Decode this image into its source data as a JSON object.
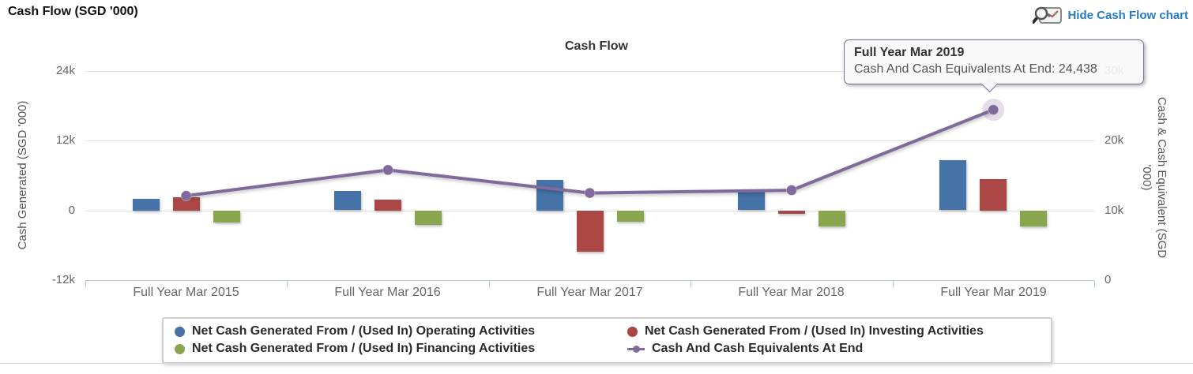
{
  "header": {
    "title": "Cash Flow (SGD '000)",
    "toggle_link": "Hide Cash Flow chart"
  },
  "chart_data": {
    "type": "combo-bar-line",
    "title": "Cash Flow",
    "categories": [
      "Full Year Mar 2015",
      "Full Year Mar 2016",
      "Full Year Mar 2017",
      "Full Year Mar 2018",
      "Full Year Mar 2019"
    ],
    "bar_series": [
      {
        "name": "Net Cash Generated From / (Used In) Operating Activities",
        "color": "#4572A7",
        "values": [
          2000,
          3300,
          5300,
          3300,
          8600
        ]
      },
      {
        "name": "Net Cash Generated From / (Used In) Investing Activities",
        "color": "#AA4643",
        "values": [
          2300,
          1900,
          -7000,
          -500,
          5400
        ]
      },
      {
        "name": "Net Cash Generated From / (Used In) Financing Activities",
        "color": "#89A54E",
        "values": [
          -2000,
          -2400,
          -1900,
          -2700,
          -2700
        ]
      }
    ],
    "line_series": [
      {
        "name": "Cash And Cash Equivalents At End",
        "color": "#80699B",
        "values": [
          12100,
          15800,
          12500,
          12900,
          24438
        ],
        "highlight_index": 4
      }
    ],
    "left_axis": {
      "label": "Cash Generated (SGD '000)",
      "tick_labels": [
        "24k",
        "12k",
        "0",
        "-12k"
      ],
      "tick_values": [
        24000,
        12000,
        0,
        -12000
      ],
      "min": -12000,
      "max": 24000
    },
    "right_axis": {
      "label": "Cash & Cash Equivalent (SGD '000)",
      "tick_labels": [
        "30k",
        "20k",
        "10k",
        "0"
      ],
      "tick_values": [
        30000,
        20000,
        10000,
        0
      ],
      "min": 0,
      "max": 30000
    },
    "grid": true,
    "legend_position": "bottom"
  },
  "tooltip": {
    "title": "Full Year Mar 2019",
    "line": "Cash And Cash Equivalents At End: 24,438"
  }
}
